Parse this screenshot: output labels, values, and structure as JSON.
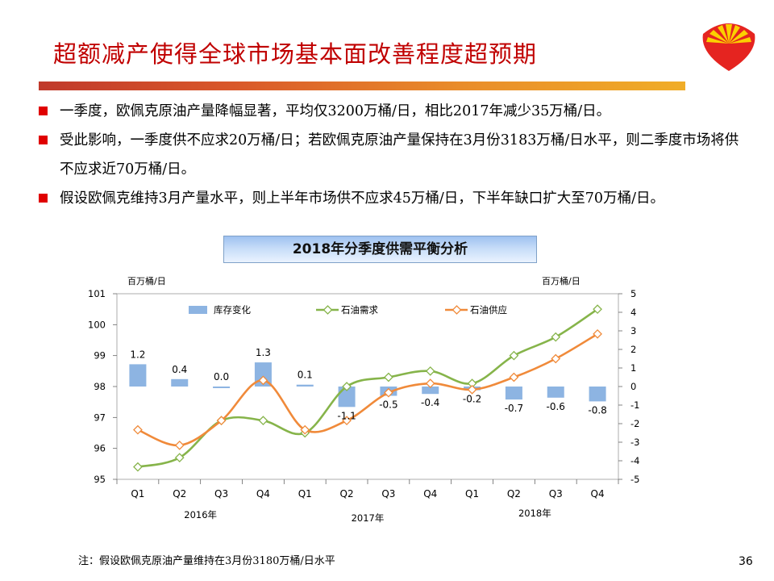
{
  "slide": {
    "title": "超额减产使得全球市场基本面改善程度超预期",
    "bullets": [
      "一季度，欧佩克原油产量降幅显著，平均仅3200万桶/日，相比2017年减少35万桶/日。",
      "受此影响，一季度供不应求20万桶/日；若欧佩克原油产量保持在3月份3183万桶/日水平，则二季度市场将供不应求近70万桶/日。",
      "假设欧佩克维持3月产量水平，则上半年市场供不应求45万桶/日，下半年缺口扩大至70万桶/日。"
    ],
    "chart_title": "2018年分季度供需平衡分析",
    "unit_left": "百万桶/日",
    "unit_right": "百万桶/日",
    "note": "注：假设欧佩克原油产量维持在3月份3180万桶/日水平",
    "page_number": "36"
  },
  "colors": {
    "title": "#c00000",
    "bullet": "#e00000",
    "bar": "#8db4e2",
    "demand": "#86b44a",
    "supply": "#f08a3a"
  },
  "chart_data": {
    "type": "bar+line",
    "title": "2018年分季度供需平衡分析",
    "categories": [
      "Q1",
      "Q2",
      "Q3",
      "Q4",
      "Q1",
      "Q2",
      "Q3",
      "Q4",
      "Q1",
      "Q2",
      "Q3",
      "Q4"
    ],
    "year_groups": [
      {
        "label": "2016年",
        "from": 0,
        "to": 3
      },
      {
        "label": "2017年",
        "from": 4,
        "to": 7
      },
      {
        "label": "2018年",
        "from": 8,
        "to": 11
      }
    ],
    "left_axis": {
      "label": "百万桶/日",
      "min": 95,
      "max": 101,
      "ticks": [
        95,
        96,
        97,
        98,
        99,
        100,
        101
      ]
    },
    "right_axis": {
      "label": "百万桶/日",
      "min": -5,
      "max": 5,
      "ticks": [
        -5,
        -4,
        -3,
        -2,
        -1,
        0,
        1,
        2,
        3,
        4,
        5
      ]
    },
    "series": [
      {
        "name": "库存变化",
        "type": "bar",
        "axis": "right",
        "values": [
          1.2,
          0.4,
          0.0,
          1.3,
          0.1,
          -1.1,
          -0.5,
          -0.4,
          -0.2,
          -0.7,
          -0.6,
          -0.8
        ],
        "labels": [
          "1.2",
          "0.4",
          "0.0",
          "1.3",
          "0.1",
          "-1.1",
          "-0.5",
          "-0.4",
          "-0.2",
          "-0.7",
          "-0.6",
          "-0.8"
        ]
      },
      {
        "name": "石油需求",
        "type": "line",
        "axis": "left",
        "values": [
          95.4,
          95.7,
          96.9,
          96.9,
          96.5,
          98.0,
          98.3,
          98.5,
          98.1,
          99.0,
          99.6,
          100.5
        ]
      },
      {
        "name": "石油供应",
        "type": "line",
        "axis": "left",
        "values": [
          96.6,
          96.1,
          96.9,
          98.2,
          96.6,
          96.9,
          97.8,
          98.1,
          97.9,
          98.3,
          98.9,
          99.7
        ]
      }
    ],
    "legend_position": "top"
  }
}
